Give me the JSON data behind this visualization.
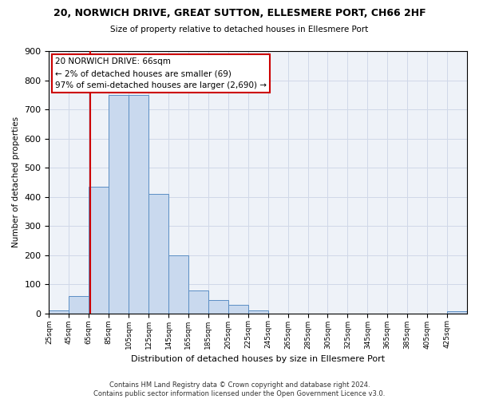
{
  "title": "20, NORWICH DRIVE, GREAT SUTTON, ELLESMERE PORT, CH66 2HF",
  "subtitle": "Size of property relative to detached houses in Ellesmere Port",
  "xlabel": "Distribution of detached houses by size in Ellesmere Port",
  "ylabel": "Number of detached properties",
  "bar_edges": [
    25,
    45,
    65,
    85,
    105,
    125,
    145,
    165,
    185,
    205,
    225,
    245,
    265,
    285,
    305,
    325,
    345,
    365,
    385,
    405,
    425
  ],
  "bar_heights": [
    10,
    60,
    435,
    750,
    750,
    410,
    200,
    78,
    46,
    30,
    10,
    0,
    0,
    0,
    0,
    0,
    0,
    0,
    0,
    0,
    8
  ],
  "bar_color": "#c9d9ee",
  "bar_edgecolor": "#5b8ec4",
  "ylim": [
    0,
    900
  ],
  "yticks": [
    0,
    100,
    200,
    300,
    400,
    500,
    600,
    700,
    800,
    900
  ],
  "xtick_labels": [
    "25sqm",
    "45sqm",
    "65sqm",
    "85sqm",
    "105sqm",
    "125sqm",
    "145sqm",
    "165sqm",
    "185sqm",
    "205sqm",
    "225sqm",
    "245sqm",
    "265sqm",
    "285sqm",
    "305sqm",
    "325sqm",
    "345sqm",
    "365sqm",
    "385sqm",
    "405sqm",
    "425sqm"
  ],
  "vline_x": 66,
  "vline_color": "#cc0000",
  "annotation_line1": "20 NORWICH DRIVE: 66sqm",
  "annotation_line2": "← 2% of detached houses are smaller (69)",
  "annotation_line3": "97% of semi-detached houses are larger (2,690) →",
  "annotation_box_edgecolor": "#cc0000",
  "grid_color": "#d0d8e8",
  "background_color": "#eef2f8",
  "footer_line1": "Contains HM Land Registry data © Crown copyright and database right 2024.",
  "footer_line2": "Contains public sector information licensed under the Open Government Licence v3.0."
}
